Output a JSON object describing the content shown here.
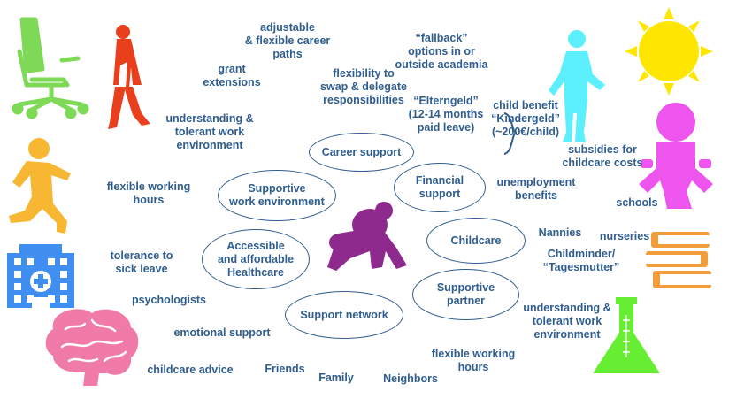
{
  "hubs": {
    "career_support": "Career support",
    "supportive_work_environment": "Supportive\nwork environment",
    "financial_support": "Financial\nsupport",
    "accessible_healthcare": "Accessible\nand affordable\nHealthcare",
    "childcare": "Childcare",
    "supportive_partner": "Supportive\npartner",
    "support_network": "Support network"
  },
  "labels": {
    "adjustable_career_paths": "adjustable\n& flexible career\npaths",
    "fallback_options": "“fallback”\noptions in or\noutside academia",
    "grant_extensions": "grant\nextensions",
    "flexibility_swap": "flexibility to\nswap & delegate\nresponsibilities",
    "elterngeld": "“Elterngeld”\n(12-14 months\npaid leave)",
    "child_benefit": "child benefit\n“Kindergeld”\n(~200€/child)",
    "understanding_work_env_top": "understanding &\ntolerant work\nenvironment",
    "subsidies_childcare": "subsidies for\nchildcare costs",
    "unemployment_benefits": "unemployment\nbenefits",
    "flexible_working_hours_left": "flexible working\nhours",
    "schools": "schools",
    "nannies": "Nannies",
    "nurseries": "nurseries",
    "childminder": "Childminder/\n“Tagesmutter”",
    "tolerance_sick_leave": "tolerance to\nsick leave",
    "psychologists": "psychologists",
    "understanding_work_env_bottom": "understanding &\ntolerant work\nenvironment",
    "emotional_support": "emotional support",
    "flexible_working_hours_bottom": "flexible working\nhours",
    "childcare_advice": "childcare advice",
    "friends": "Friends",
    "family": "Family",
    "neighbors": "Neighbors"
  },
  "icons": [
    "office-chair-icon",
    "walking-woman-icon",
    "standing-man-icon",
    "sun-icon",
    "baby-figure-icon",
    "running-child-icon",
    "hospital-icon",
    "books-icon",
    "brain-icon",
    "flask-icon",
    "crawling-baby-icon"
  ],
  "colors": {
    "text": "#2f5d8f",
    "chair": "#7ed957",
    "woman": "#e8401c",
    "man": "#5cf0ff",
    "sun": "#ffe600",
    "baby_figure": "#ee55ee",
    "running_child": "#f7b733",
    "hospital": "#3f8ef0",
    "books": "#f39c3c",
    "brain": "#f07aa8",
    "flask": "#66ee33",
    "crawling_baby": "#8e2a8e"
  }
}
